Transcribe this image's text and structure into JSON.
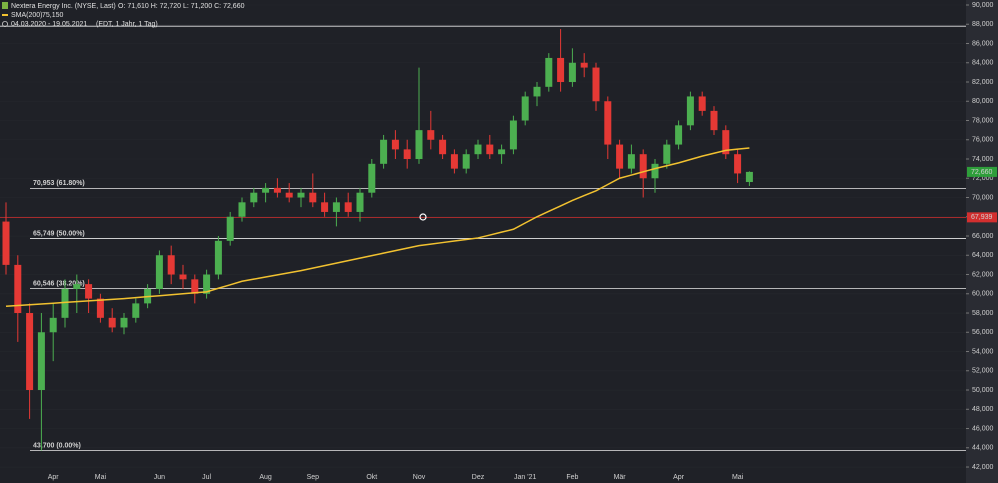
{
  "header": {
    "title": "Nextera Energy Inc. (NYSE, Last)",
    "ohlc": "O: 71,610  H: 72,720  L: 71,200  C: 72,660",
    "sma_name": "SMA(200)",
    "sma_label": "75,150",
    "range": "04.03.2020 - 19.05.2021",
    "range_info": "(EDT, 1 Jahr, 1 Tag)"
  },
  "chart_data": {
    "type": "candlestick",
    "categories": [
      null,
      null,
      null,
      null,
      "Apr",
      null,
      null,
      null,
      "Mai",
      null,
      null,
      null,
      null,
      "Jun",
      null,
      null,
      null,
      "Jul",
      null,
      null,
      null,
      null,
      "Aug",
      null,
      null,
      null,
      "Sep",
      null,
      null,
      null,
      null,
      "Okt",
      null,
      null,
      null,
      "Nov",
      null,
      null,
      null,
      null,
      "Dez",
      null,
      null,
      null,
      "Jan '21",
      null,
      null,
      null,
      "Feb",
      null,
      null,
      null,
      "Mär",
      null,
      null,
      null,
      null,
      "Apr",
      null,
      null,
      null,
      null,
      "Mai",
      null
    ],
    "open": [
      67500,
      63000,
      58000,
      50000,
      56000,
      57500,
      60500,
      61000,
      59500,
      57500,
      56500,
      57500,
      59000,
      60500,
      64000,
      62000,
      61500,
      60000,
      62000,
      65500,
      68000,
      69500,
      70500,
      71000,
      70500,
      70000,
      70500,
      69500,
      68500,
      69500,
      68500,
      70500,
      73500,
      76000,
      75000,
      74000,
      77000,
      76000,
      74500,
      73000,
      74500,
      75500,
      74500,
      75000,
      78000,
      80500,
      81500,
      84500,
      82000,
      84000,
      83500,
      80000,
      75500,
      73000,
      74500,
      72000,
      73500,
      75500,
      77500,
      80500,
      79000,
      77000,
      74500,
      71610
    ],
    "high": [
      69500,
      64000,
      59000,
      58000,
      59000,
      61500,
      62000,
      61500,
      60000,
      58500,
      58000,
      59500,
      61000,
      64500,
      65000,
      63000,
      62000,
      62500,
      66000,
      68500,
      70000,
      71000,
      71500,
      72000,
      71500,
      71000,
      72500,
      70500,
      70000,
      70500,
      71000,
      74000,
      76500,
      77000,
      76000,
      83500,
      79000,
      76500,
      75000,
      75000,
      76000,
      76500,
      75500,
      78500,
      81000,
      82000,
      85000,
      87500,
      85500,
      85000,
      84000,
      80500,
      76000,
      75500,
      75000,
      74000,
      76000,
      78000,
      81000,
      81000,
      79500,
      77500,
      75000,
      72720
    ],
    "low": [
      62000,
      55000,
      47000,
      43700,
      53000,
      56500,
      58000,
      58000,
      57000,
      56000,
      55800,
      57000,
      58500,
      60000,
      61000,
      60500,
      59000,
      59500,
      61500,
      65000,
      67500,
      69000,
      69500,
      70000,
      69500,
      69000,
      69000,
      68000,
      67000,
      68000,
      67500,
      70000,
      73000,
      74000,
      73000,
      73500,
      75000,
      74000,
      72500,
      72500,
      74000,
      74000,
      73500,
      74500,
      77500,
      79500,
      81000,
      81000,
      81500,
      82500,
      79000,
      74000,
      72000,
      72500,
      70000,
      70500,
      73000,
      75000,
      77000,
      78500,
      76500,
      74000,
      71500,
      71200
    ],
    "close": [
      63000,
      58000,
      50000,
      56000,
      57500,
      60500,
      61000,
      59500,
      57500,
      56500,
      57500,
      59000,
      60500,
      64000,
      62000,
      61500,
      60000,
      62000,
      65500,
      68000,
      69500,
      70500,
      71000,
      70500,
      70000,
      70500,
      69500,
      68500,
      69500,
      68500,
      70500,
      73500,
      76000,
      75000,
      74000,
      77000,
      76000,
      74500,
      73000,
      74500,
      75500,
      74500,
      75000,
      78000,
      80500,
      81500,
      84500,
      82000,
      84000,
      83500,
      80000,
      75500,
      73000,
      74500,
      72000,
      73500,
      75500,
      77500,
      80500,
      79000,
      77000,
      74500,
      72500,
      72660
    ],
    "up_color": "#4caf50",
    "down_color": "#e53935",
    "sma": {
      "name": "SMA(200)",
      "color": "#f2c230",
      "values": [
        58700,
        58780,
        58860,
        58940,
        59020,
        59100,
        59180,
        59260,
        59340,
        59420,
        59500,
        59600,
        59700,
        59800,
        59900,
        60000,
        60100,
        60200,
        60570,
        60930,
        61300,
        61520,
        61740,
        61960,
        62180,
        62400,
        62660,
        62920,
        63180,
        63440,
        63700,
        63960,
        64220,
        64480,
        64740,
        65000,
        65160,
        65320,
        65480,
        65640,
        65800,
        66100,
        66400,
        66700,
        67350,
        68000,
        68570,
        69130,
        69700,
        70200,
        70700,
        71350,
        72000,
        72330,
        72670,
        73000,
        73300,
        73600,
        73950,
        74300,
        74600,
        74900,
        75030,
        75150
      ]
    },
    "levels": [
      {
        "value": 87798,
        "label": null
      },
      {
        "value": 70953,
        "label": "70,953 (61.80%)"
      },
      {
        "value": 65749,
        "label": "65,749 (50.00%)"
      },
      {
        "value": 60546,
        "label": "60,546 (38.20%)"
      },
      {
        "value": 43700,
        "label": "43,700 (0.00%)"
      }
    ],
    "alert_line": {
      "value": 67939,
      "label": "67,939",
      "color": "#d32f2f"
    },
    "last_price": {
      "value": 72660,
      "label": "72,660",
      "color": "#2e9e3a"
    },
    "ylim": [
      40340,
      90520
    ],
    "yticks": [
      {
        "value": 42000,
        "label": "42,000"
      },
      {
        "value": 44000,
        "label": "44,000"
      },
      {
        "value": 46000,
        "label": "46,000"
      },
      {
        "value": 48000,
        "label": "48,000"
      },
      {
        "value": 50000,
        "label": "50,000"
      },
      {
        "value": 52000,
        "label": "52,000"
      },
      {
        "value": 54000,
        "label": "54,000"
      },
      {
        "value": 56000,
        "label": "56,000"
      },
      {
        "value": 58000,
        "label": "58,000"
      },
      {
        "value": 60000,
        "label": "60,000"
      },
      {
        "value": 62000,
        "label": "62,000"
      },
      {
        "value": 64000,
        "label": "64,000"
      },
      {
        "value": 66000,
        "label": "66,000"
      },
      {
        "value": 68000,
        "label": "68,000"
      },
      {
        "value": 70000,
        "label": "70,000"
      },
      {
        "value": 72000,
        "label": "72,000"
      },
      {
        "value": 74000,
        "label": "74,000"
      },
      {
        "value": 76000,
        "label": "76,000"
      },
      {
        "value": 78000,
        "label": "78,000"
      },
      {
        "value": 80000,
        "label": "80,000"
      },
      {
        "value": 82000,
        "label": "82,000"
      },
      {
        "value": 84000,
        "label": "84,000"
      },
      {
        "value": 86000,
        "label": "86,000"
      },
      {
        "value": 88000,
        "label": "88,000"
      },
      {
        "value": 90000,
        "label": "90,000"
      }
    ]
  }
}
